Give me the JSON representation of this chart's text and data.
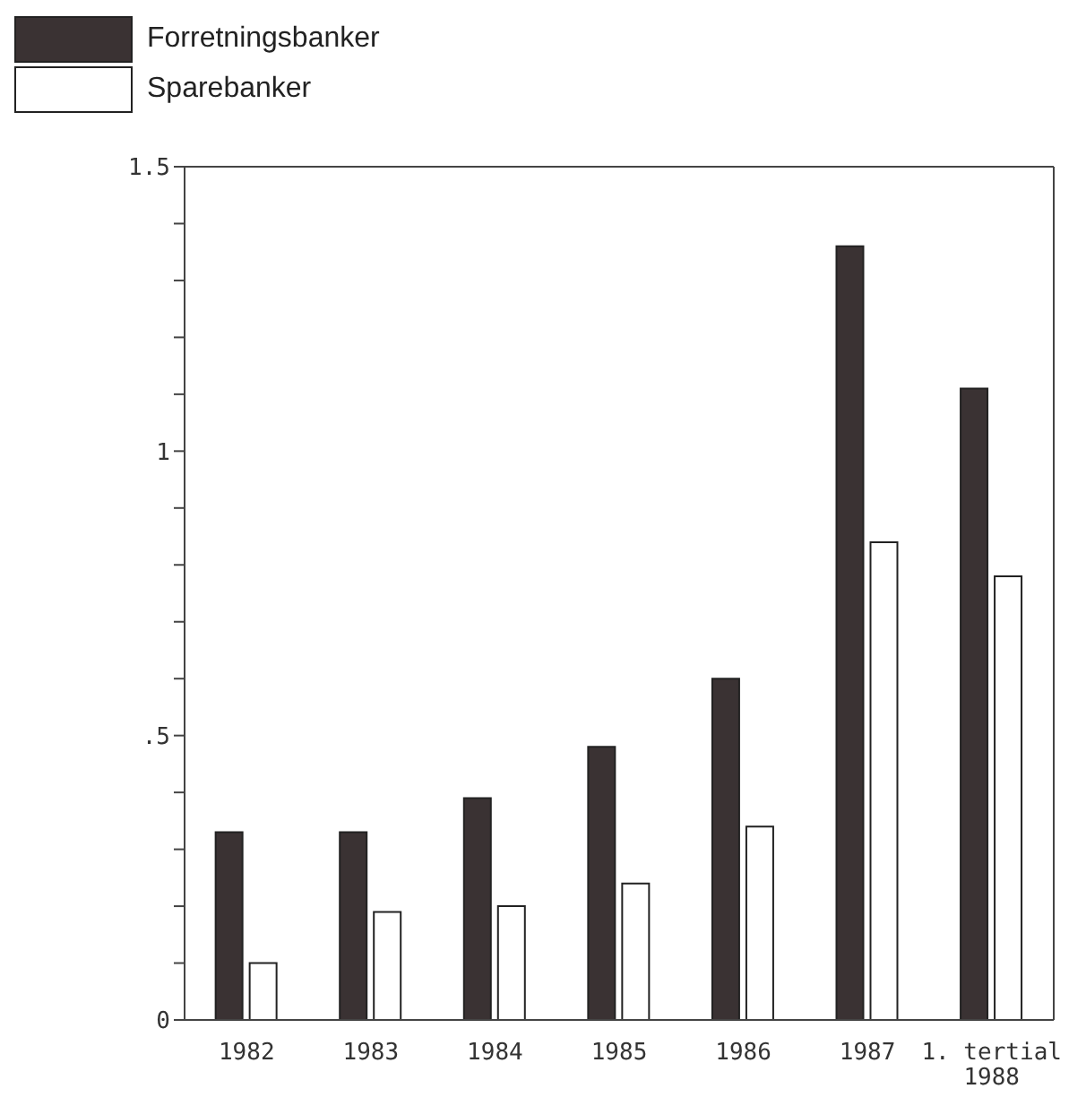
{
  "chart_data": {
    "type": "bar",
    "categories": [
      "1982",
      "1983",
      "1984",
      "1985",
      "1986",
      "1987",
      "1. tertial 1988"
    ],
    "series": [
      {
        "name": "Forretningsbanker",
        "color": "#3a3233",
        "values": [
          0.33,
          0.33,
          0.39,
          0.48,
          0.6,
          1.36,
          1.11
        ]
      },
      {
        "name": "Sparebanker",
        "color": "#ffffff",
        "values": [
          0.1,
          0.19,
          0.2,
          0.24,
          0.34,
          0.84,
          0.78
        ]
      }
    ],
    "ylim": [
      0,
      1.5
    ],
    "yticks": [
      {
        "value": 0,
        "label": "0"
      },
      {
        "value": 0.1,
        "label": null
      },
      {
        "value": 0.2,
        "label": null
      },
      {
        "value": 0.3,
        "label": null
      },
      {
        "value": 0.4,
        "label": null
      },
      {
        "value": 0.5,
        "label": ".5"
      },
      {
        "value": 0.6,
        "label": null
      },
      {
        "value": 0.7,
        "label": null
      },
      {
        "value": 0.8,
        "label": null
      },
      {
        "value": 0.9,
        "label": null
      },
      {
        "value": 1,
        "label": "1"
      },
      {
        "value": 1.1,
        "label": null
      },
      {
        "value": 1.2,
        "label": null
      },
      {
        "value": 1.3,
        "label": null
      },
      {
        "value": 1.4,
        "label": null
      },
      {
        "value": 1.5,
        "label": "1.5"
      }
    ],
    "legend": "top left",
    "grid": false
  }
}
